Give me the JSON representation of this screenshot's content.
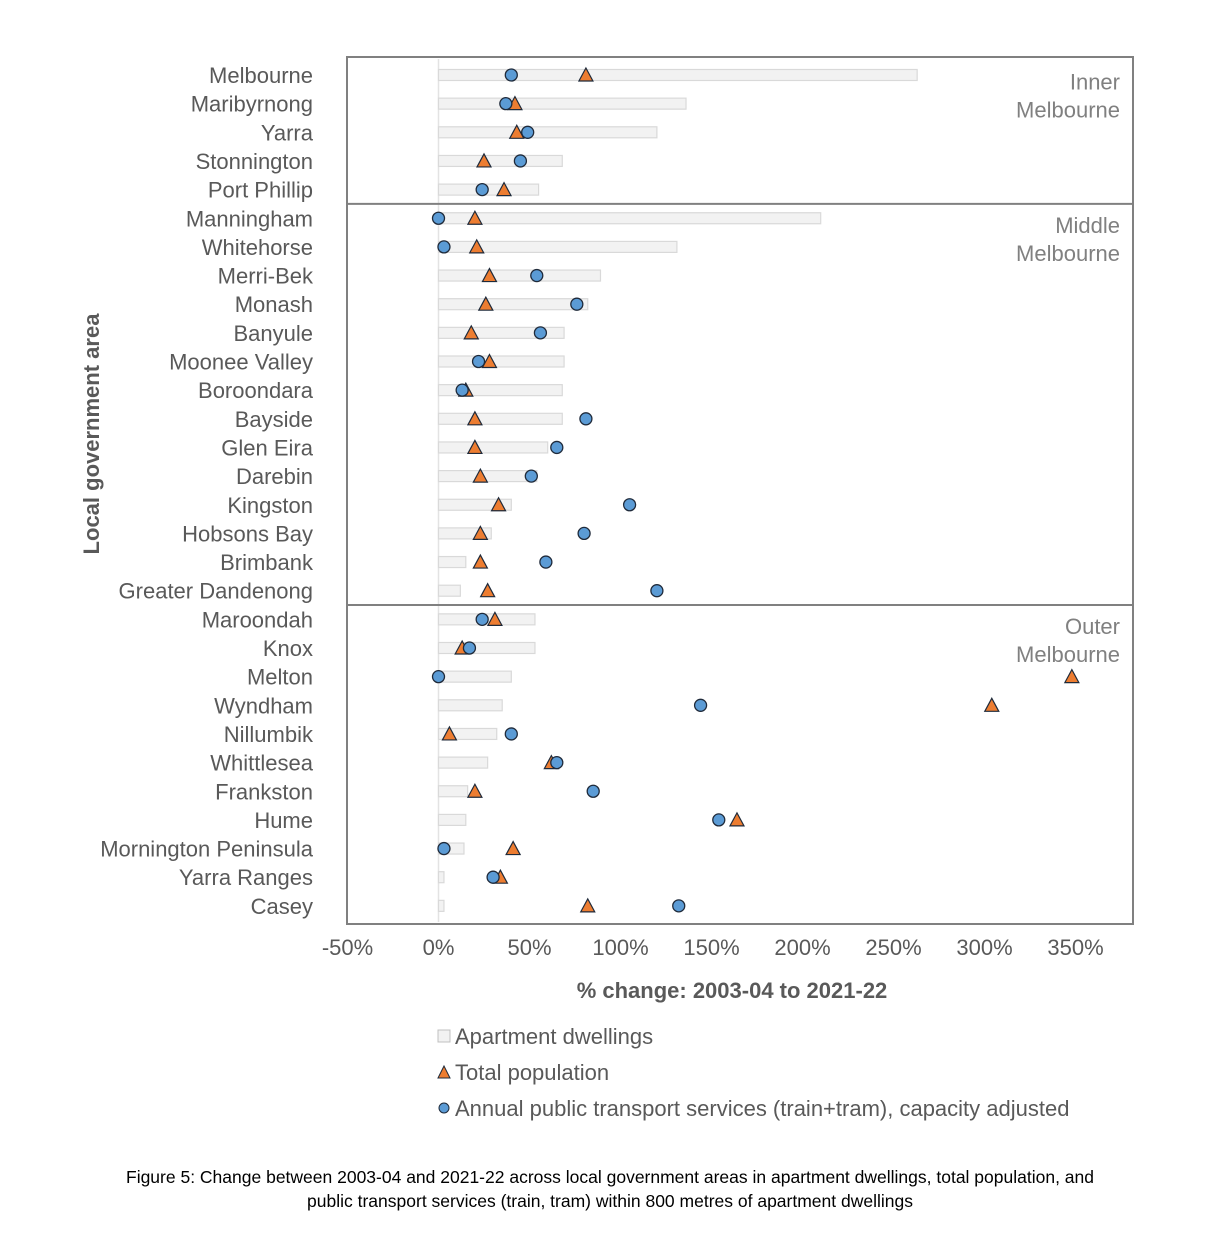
{
  "chart_data": {
    "type": "scatter",
    "title": "",
    "xlabel": "% change: 2003-04 to 2021-22",
    "ylabel": "Local government area",
    "xlim": [
      -50,
      382
    ],
    "xticks": [
      -50,
      0,
      50,
      100,
      150,
      200,
      250,
      300,
      350
    ],
    "xtick_labels": [
      "-50%",
      "0%",
      "50%",
      "100%",
      "150%",
      "200%",
      "250%",
      "300%",
      "350%"
    ],
    "grid": false,
    "legend_position": "bottom",
    "legend": [
      {
        "key": "apartments",
        "label": "Apartment dwellings",
        "marker": "bar"
      },
      {
        "key": "population",
        "label": "Total population",
        "marker": "triangle"
      },
      {
        "key": "transport",
        "label": "Annual public transport services (train+tram), capacity adjusted",
        "marker": "circle"
      }
    ],
    "colors": {
      "apartments_fill": "#f2f2f2",
      "apartments_stroke": "#d9d9d9",
      "population": "#ed7d31",
      "transport": "#5b9bd5",
      "marker_stroke": "#1f2a3a",
      "frame": "#808080"
    },
    "groups": [
      {
        "name_lines": [
          "Inner",
          "Melbourne"
        ],
        "areas": [
          {
            "name": "Melbourne",
            "apartments": 263,
            "population": 81,
            "transport": 40
          },
          {
            "name": "Maribyrnong",
            "apartments": 136,
            "population": 42,
            "transport": 37
          },
          {
            "name": "Yarra",
            "apartments": 120,
            "population": 43,
            "transport": 49
          },
          {
            "name": "Stonnington",
            "apartments": 68,
            "population": 25,
            "transport": 45
          },
          {
            "name": "Port Phillip",
            "apartments": 55,
            "population": 36,
            "transport": 24
          }
        ]
      },
      {
        "name_lines": [
          "Middle",
          "Melbourne"
        ],
        "areas": [
          {
            "name": "Manningham",
            "apartments": 210,
            "population": 20,
            "transport": 0
          },
          {
            "name": "Whitehorse",
            "apartments": 131,
            "population": 21,
            "transport": 3
          },
          {
            "name": "Merri-Bek",
            "apartments": 89,
            "population": 28,
            "transport": 54
          },
          {
            "name": "Monash",
            "apartments": 82,
            "population": 26,
            "transport": 76
          },
          {
            "name": "Banyule",
            "apartments": 69,
            "population": 18,
            "transport": 56
          },
          {
            "name": "Moonee Valley",
            "apartments": 69,
            "population": 28,
            "transport": 22
          },
          {
            "name": "Boroondara",
            "apartments": 68,
            "population": 15,
            "transport": 13
          },
          {
            "name": "Bayside",
            "apartments": 68,
            "population": 20,
            "transport": 81
          },
          {
            "name": "Glen Eira",
            "apartments": 60,
            "population": 20,
            "transport": 65
          },
          {
            "name": "Darebin",
            "apartments": 54,
            "population": 23,
            "transport": 51
          },
          {
            "name": "Kingston",
            "apartments": 40,
            "population": 33,
            "transport": 105
          },
          {
            "name": "Hobsons Bay",
            "apartments": 29,
            "population": 23,
            "transport": 80
          },
          {
            "name": "Brimbank",
            "apartments": 15,
            "population": 23,
            "transport": 59
          },
          {
            "name": "Greater Dandenong",
            "apartments": 12,
            "population": 27,
            "transport": 120
          }
        ]
      },
      {
        "name_lines": [
          "Outer",
          "Melbourne"
        ],
        "areas": [
          {
            "name": "Maroondah",
            "apartments": 53,
            "population": 31,
            "transport": 24
          },
          {
            "name": "Knox",
            "apartments": 53,
            "population": 13,
            "transport": 17
          },
          {
            "name": "Melton",
            "apartments": 40,
            "population": 348,
            "transport": 0
          },
          {
            "name": "Wyndham",
            "apartments": 35,
            "population": 304,
            "transport": 144
          },
          {
            "name": "Nillumbik",
            "apartments": 32,
            "population": 6,
            "transport": 40
          },
          {
            "name": "Whittlesea",
            "apartments": 27,
            "population": 62,
            "transport": 65
          },
          {
            "name": "Frankston",
            "apartments": 16,
            "population": 20,
            "transport": 85
          },
          {
            "name": "Hume",
            "apartments": 15,
            "population": 164,
            "transport": 154
          },
          {
            "name": "Mornington Peninsula",
            "apartments": 14,
            "population": 41,
            "transport": 3
          },
          {
            "name": "Yarra Ranges",
            "apartments": 3,
            "population": 34,
            "transport": 30
          },
          {
            "name": "Casey",
            "apartments": 3,
            "population": 82,
            "transport": 132
          }
        ]
      }
    ]
  },
  "caption": {
    "line1": "Figure 5: Change between 2003-04 and 2021-22 across local government areas in apartment dwellings, total population, and",
    "line2": "public transport services (train, tram) within 800 metres of apartment dwellings"
  }
}
